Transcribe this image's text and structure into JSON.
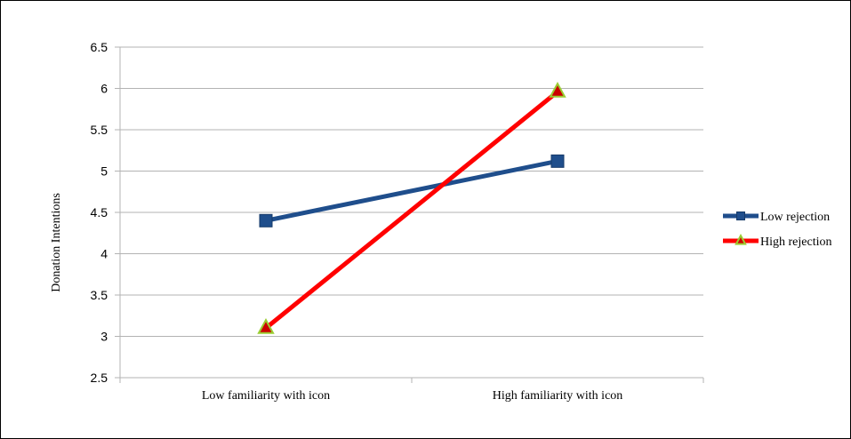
{
  "chart_data": {
    "type": "line",
    "title": "",
    "xlabel": "",
    "ylabel": "Donation Intentions",
    "categories": [
      "Low familiarity with icon",
      "High familiarity with icon"
    ],
    "ylim": [
      2.5,
      6.5
    ],
    "yticks": [
      2.5,
      3,
      3.5,
      4,
      4.5,
      5,
      5.5,
      6,
      6.5
    ],
    "ytick_labels": [
      "2.5",
      "3",
      "3.5",
      "4",
      "4.5",
      "5",
      "5.5",
      "6",
      "6.5"
    ],
    "grid": "horizontal",
    "legend_position": "right",
    "series": [
      {
        "name": "Low rejection",
        "values": [
          4.4,
          5.12
        ],
        "color": "#1f4e8c",
        "marker": "square"
      },
      {
        "name": "High rejection",
        "values": [
          3.1,
          5.96
        ],
        "color": "#ff0000",
        "marker": "triangle",
        "marker_fill": "#cc0000",
        "marker_edge": "#9acd32"
      }
    ]
  }
}
